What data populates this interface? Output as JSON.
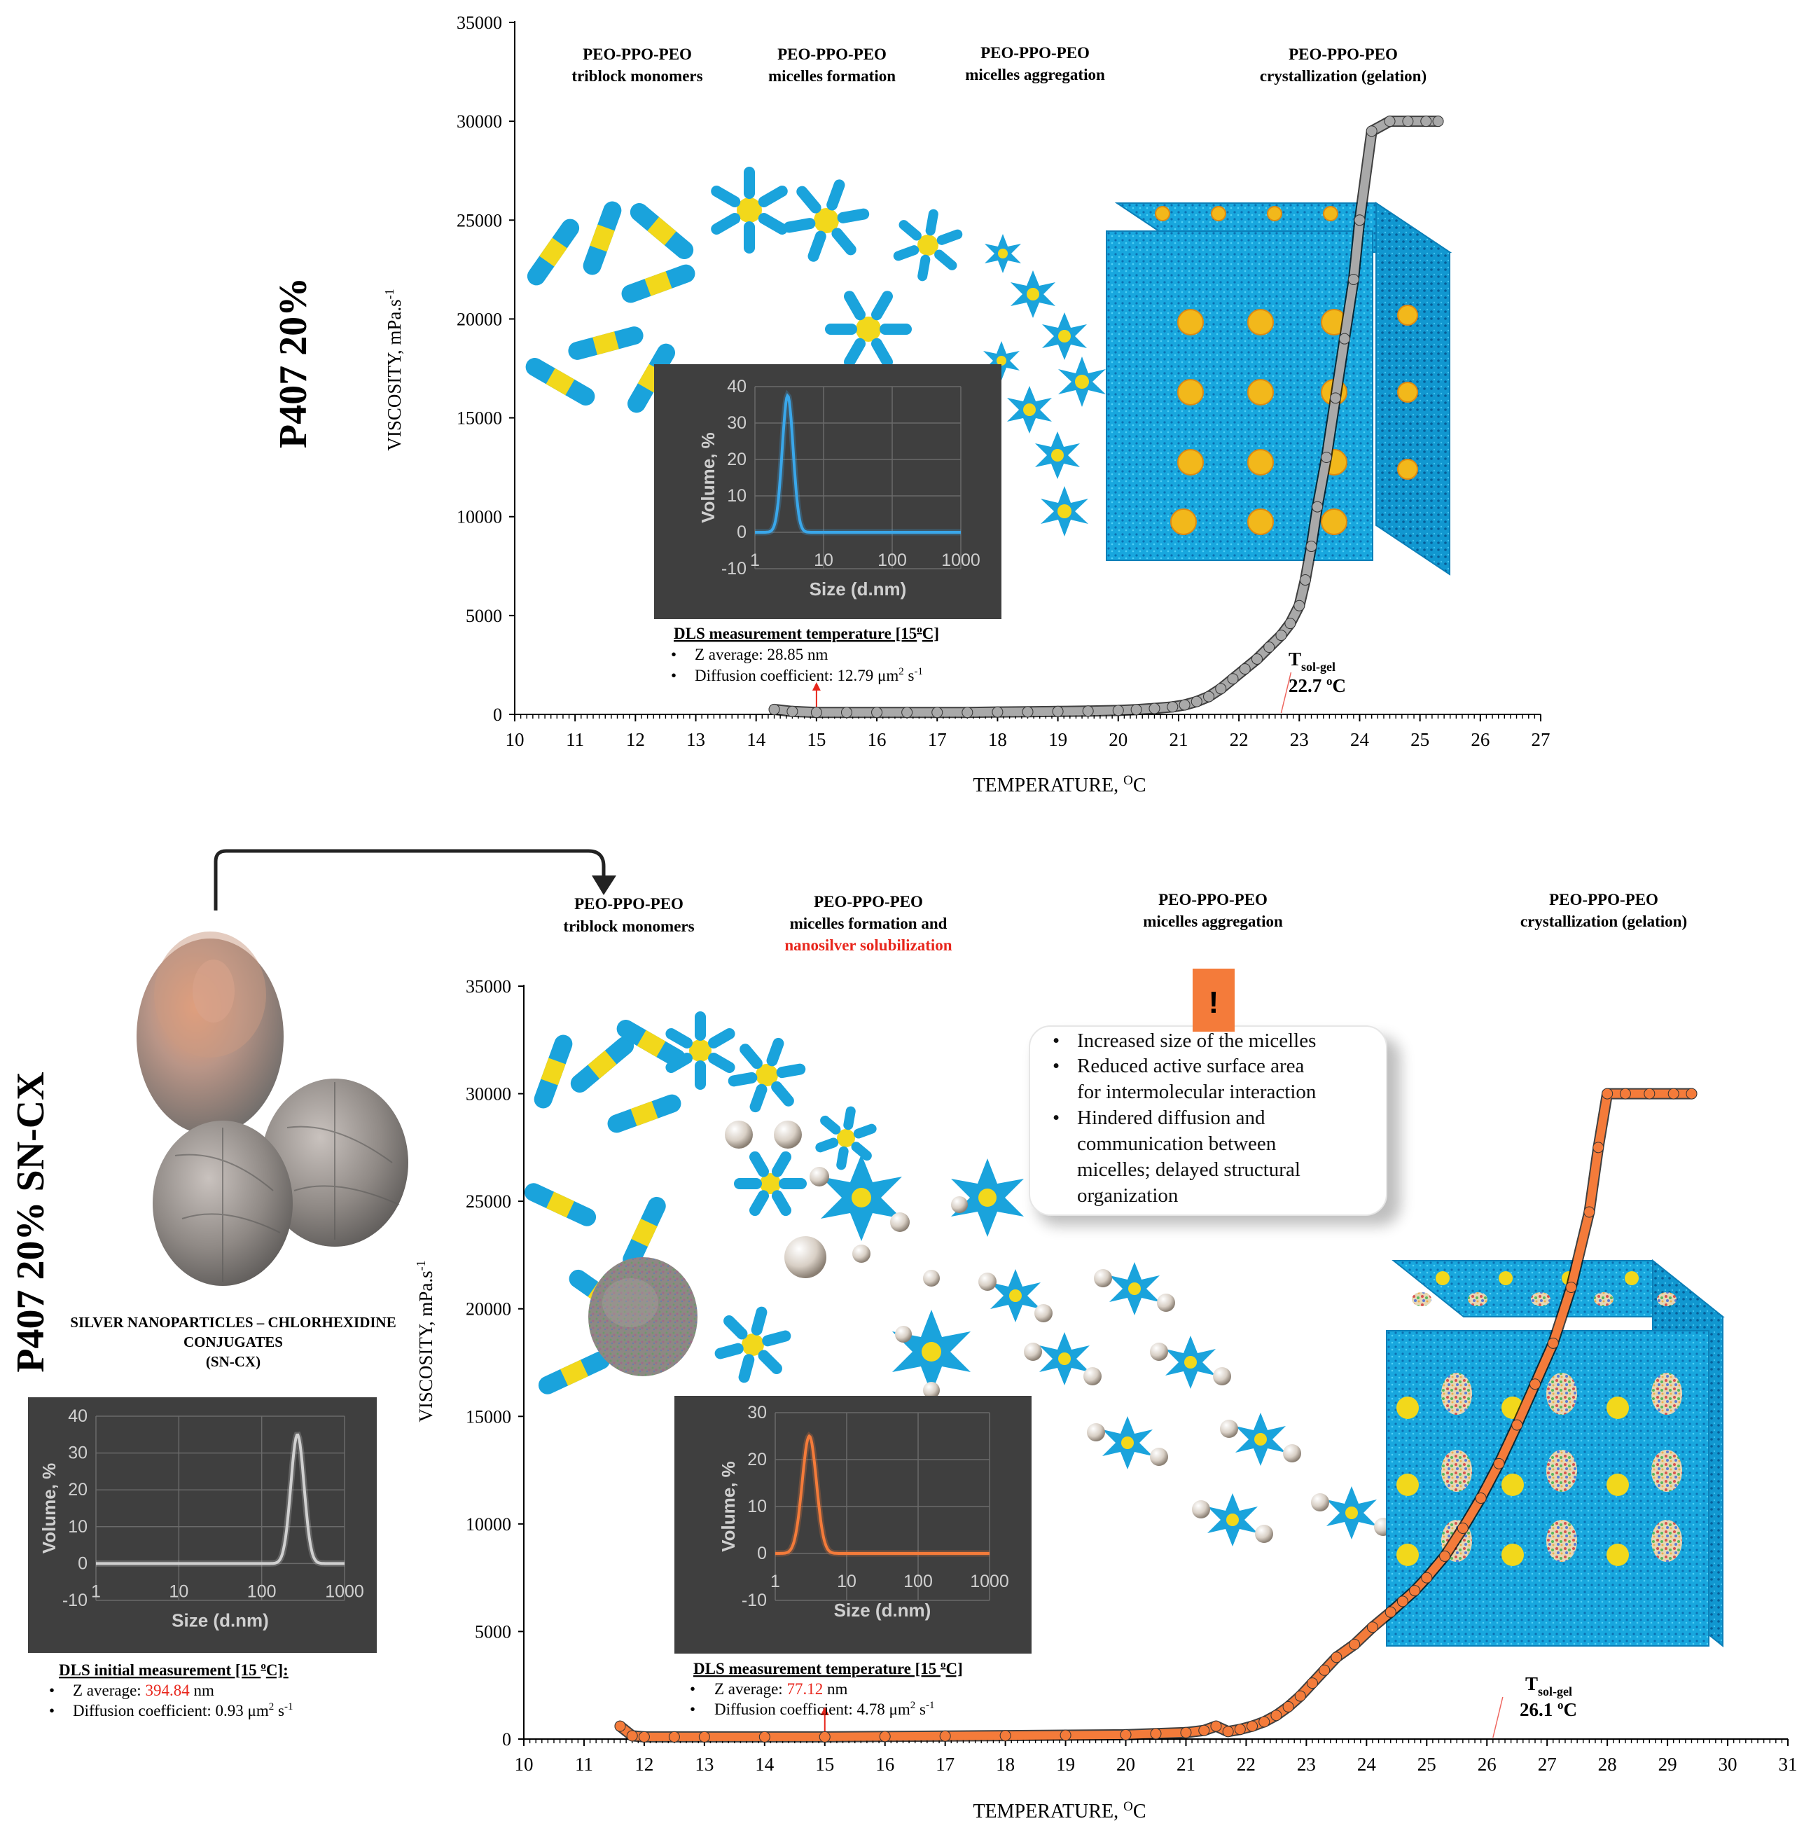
{
  "colors": {
    "top_curve": "#a9a9a9",
    "bottom_curve": "#f47b3a",
    "inset_bg": "#3f3f3f",
    "dls_top": "#3aa7ea",
    "dls_bottom": "#f47b3a",
    "dls_initial": "#d0d0d0",
    "micelle_blue": "#1aa3dc",
    "micelle_yellow": "#f2d81b",
    "warning_orange": "#f47b3a",
    "highlight_red": "#e8261c"
  },
  "top": {
    "side_label": "P407 20%",
    "ylabel": "VISCOSITY, mPa.s",
    "ylabel_sup": "-1",
    "xlabel": "TEMPERATURE, ",
    "xlabel_sup": "O",
    "xlabel_unit": "C",
    "stages": [
      {
        "line1": "PEO-PPO-PEO",
        "line2": "triblock monomers"
      },
      {
        "line1": "PEO-PPO-PEO",
        "line2": "micelles formation"
      },
      {
        "line1": "PEO-PPO-PEO",
        "line2": "micelles aggregation"
      },
      {
        "line1": "PEO-PPO-PEO",
        "line2": "crystallization (gelation)"
      }
    ],
    "tsol": {
      "T": "T",
      "sub": "sol-gel",
      "value": "22.7 ",
      "sup": "o",
      "unit": "C"
    },
    "dls": {
      "title": "DLS measurement temperature [15",
      "title_sup": "o",
      "title_end": "C]",
      "bullets": [
        {
          "pre": "Z average: ",
          "hl": "",
          "post": "28.85 nm"
        },
        {
          "pre": "Diffusion coefficient: 12.79 μm",
          "sup2": "2",
          "post2": " s",
          "sup3": "-1"
        }
      ],
      "inset_xlabel": "Size (d.nm)",
      "inset_ylabel": "Volume, %"
    }
  },
  "bottom": {
    "side_label": "P407 20% SN-CX",
    "ylabel": "VISCOSITY, mPa.s",
    "ylabel_sup": "-1",
    "xlabel": "TEMPERATURE, ",
    "xlabel_sup": "O",
    "xlabel_unit": "C",
    "stages": [
      {
        "line1": "PEO-PPO-PEO",
        "line2": "triblock monomers",
        "line3": ""
      },
      {
        "line1": "PEO-PPO-PEO",
        "line2": "micelles formation and",
        "line3": "nanosilver solubilization"
      },
      {
        "line1": "PEO-PPO-PEO",
        "line2": "micelles aggregation",
        "line3": ""
      },
      {
        "line1": "PEO-PPO-PEO",
        "line2": "crystallization (gelation)",
        "line3": ""
      }
    ],
    "warning_mark": "!",
    "callout": [
      "Increased size of the micelles",
      "Reduced active surface area for intermolecular interaction",
      "Hindered diffusion and communication between micelles; delayed structural organization"
    ],
    "tsol": {
      "T": "T",
      "sub": "sol-gel",
      "value": "26.1 ",
      "sup": "o",
      "unit": "C"
    },
    "dls": {
      "title": "DLS measurement temperature [15 ",
      "title_sup": "o",
      "title_end": "C]",
      "z_pre": "Z average: ",
      "z_val": "77.12",
      "z_post": " nm",
      "d_pre": "Diffusion coefficient: 4.78 μm",
      "d_sup": "2",
      "d_mid": " s",
      "d_sup2": "-1"
    },
    "np_label": [
      "SILVER NANOPARTICLES – CHLORHEXIDINE",
      "CONJUGATES",
      "(SN-CX)"
    ],
    "dls_initial": {
      "title": "DLS initial measurement [15 ",
      "title_sup": "o",
      "title_end": "C]:",
      "z_pre": "Z average: ",
      "z_val": "394.84",
      "z_post": " nm",
      "d_pre": "Diffusion coefficient: 0.93 μm",
      "d_sup": "2",
      "d_mid": " s",
      "d_sup2": "-1"
    }
  },
  "chart_data": [
    {
      "type": "scatter",
      "title": "",
      "xlabel": "TEMPERATURE, OC",
      "ylabel": "VISCOSITY, mPa.s-1",
      "xlim": [
        10,
        27
      ],
      "ylim": [
        0,
        35000
      ],
      "xticks": [
        10,
        11,
        12,
        13,
        14,
        15,
        16,
        17,
        18,
        19,
        20,
        21,
        22,
        23,
        24,
        25,
        26,
        27
      ],
      "yticks": [
        0,
        5000,
        10000,
        15000,
        20000,
        25000,
        30000,
        35000
      ],
      "grid": false,
      "series": [
        {
          "x": [
            14.3,
            14.6,
            15,
            15.5,
            16,
            16.5,
            17,
            17.5,
            18,
            18.5,
            19,
            19.5,
            20,
            20.3,
            20.6,
            20.9,
            21.1,
            21.3,
            21.5,
            21.7,
            21.9,
            22.1,
            22.3,
            22.5,
            22.7,
            22.85,
            23,
            23.1,
            23.2,
            23.3,
            23.45,
            23.6,
            23.75,
            23.9,
            24,
            24.2,
            24.5,
            24.8,
            25.1,
            25.3
          ],
          "y": [
            250,
            150,
            100,
            100,
            100,
            100,
            100,
            100,
            120,
            130,
            150,
            170,
            200,
            240,
            300,
            380,
            480,
            650,
            900,
            1300,
            1800,
            2300,
            2800,
            3400,
            4000,
            4600,
            5500,
            6800,
            8500,
            10500,
            13000,
            16000,
            19000,
            22000,
            25000,
            29500,
            30000,
            30000,
            30000,
            30000
          ]
        }
      ]
    },
    {
      "type": "scatter",
      "title": "",
      "xlabel": "TEMPERATURE, OC",
      "ylabel": "VISCOSITY, mPa.s-1",
      "xlim": [
        10,
        31
      ],
      "ylim": [
        0,
        35000
      ],
      "xticks": [
        10,
        11,
        12,
        13,
        14,
        15,
        16,
        17,
        18,
        19,
        20,
        21,
        22,
        23,
        24,
        25,
        26,
        27,
        28,
        29,
        30,
        31
      ],
      "yticks": [
        0,
        5000,
        10000,
        15000,
        20000,
        25000,
        30000,
        35000
      ],
      "grid": false,
      "series": [
        {
          "x": [
            11.6,
            11.8,
            12,
            12.5,
            13,
            14,
            15,
            16,
            17,
            18,
            19,
            20,
            20.5,
            21,
            21.3,
            21.5,
            21.7,
            21.9,
            22.1,
            22.3,
            22.5,
            22.7,
            22.9,
            23.1,
            23.3,
            23.5,
            23.8,
            24.1,
            24.4,
            24.6,
            24.8,
            25,
            25.3,
            25.6,
            25.9,
            26.2,
            26.5,
            26.8,
            27.1,
            27.4,
            27.7,
            27.85,
            28,
            28.3,
            28.7,
            29.1,
            29.4
          ],
          "y": [
            600,
            150,
            100,
            100,
            100,
            100,
            100,
            120,
            140,
            160,
            180,
            200,
            250,
            300,
            400,
            600,
            350,
            450,
            600,
            800,
            1100,
            1500,
            2000,
            2600,
            3200,
            3800,
            4400,
            5200,
            5900,
            6400,
            6900,
            7500,
            8500,
            9800,
            11200,
            12800,
            14600,
            16500,
            18400,
            21000,
            24500,
            27500,
            30000,
            30000,
            30000,
            30000,
            30000
          ]
        }
      ]
    },
    {
      "type": "line",
      "title": "",
      "xlabel": "Size (d.nm)",
      "ylabel": "Volume, %",
      "xscale": "log",
      "xlim": [
        1,
        1000
      ],
      "ylim": [
        -10,
        40
      ],
      "xticks": [
        1,
        10,
        100,
        1000
      ],
      "yticks": [
        -10,
        0,
        10,
        20,
        30,
        40
      ],
      "series": [
        {
          "peak_x": 3.0,
          "peak_y": 37.5,
          "width_log": 0.08
        }
      ]
    },
    {
      "type": "line",
      "title": "",
      "xlabel": "Size (d.nm)",
      "ylabel": "Volume, %",
      "xscale": "log",
      "xlim": [
        1,
        1000
      ],
      "ylim": [
        -10,
        30
      ],
      "xticks": [
        1,
        10,
        100,
        1000
      ],
      "yticks": [
        -10,
        0,
        10,
        20,
        30
      ],
      "series": [
        {
          "peak_x": 3.0,
          "peak_y": 25,
          "width_log": 0.1
        }
      ]
    },
    {
      "type": "line",
      "title": "",
      "xlabel": "Size (d.nm)",
      "ylabel": "Volume, %",
      "xscale": "log",
      "xlim": [
        1,
        1000
      ],
      "ylim": [
        -10,
        40
      ],
      "xticks": [
        1,
        10,
        100,
        1000
      ],
      "yticks": [
        -10,
        0,
        10,
        20,
        30,
        40
      ],
      "series": [
        {
          "peak_x": 270,
          "peak_y": 35,
          "width_log": 0.08
        }
      ]
    }
  ]
}
